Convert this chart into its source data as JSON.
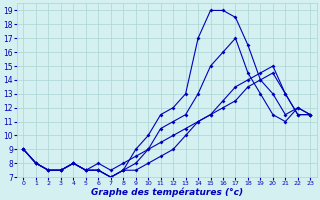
{
  "title": "Graphe des températures (°c)",
  "bg_color": "#d5f0f0",
  "grid_color": "#aad4d4",
  "line_color": "#0000bb",
  "xlim": [
    -0.5,
    23.5
  ],
  "ylim": [
    7,
    19.5
  ],
  "xticks": [
    0,
    1,
    2,
    3,
    4,
    5,
    6,
    7,
    8,
    9,
    10,
    11,
    12,
    13,
    14,
    15,
    16,
    17,
    18,
    19,
    20,
    21,
    22,
    23
  ],
  "yticks": [
    7,
    8,
    9,
    10,
    11,
    12,
    13,
    14,
    15,
    16,
    17,
    18,
    19
  ],
  "line1_x": [
    0,
    1,
    2,
    3,
    4,
    5,
    6,
    7,
    8,
    9,
    10,
    11,
    12,
    13,
    14,
    15,
    16,
    17,
    18,
    19,
    20,
    21,
    22,
    23
  ],
  "line1_y": [
    9,
    8,
    7.5,
    7.5,
    8,
    7.5,
    7.5,
    7,
    7.5,
    9,
    10,
    11.5,
    12,
    13,
    17,
    19,
    19,
    18.5,
    16.5,
    14,
    13,
    11.5,
    12,
    11.5
  ],
  "line2_x": [
    0,
    1,
    2,
    3,
    4,
    5,
    6,
    7,
    8,
    9,
    10,
    11,
    12,
    13,
    14,
    15,
    16,
    17,
    18,
    19,
    20,
    21,
    22,
    23
  ],
  "line2_y": [
    9,
    8,
    7.5,
    7.5,
    8,
    7.5,
    7.5,
    7,
    7.5,
    8,
    9,
    10.5,
    11,
    11.5,
    13,
    15,
    16,
    17,
    14.5,
    13,
    11.5,
    11,
    12,
    11.5
  ],
  "line3_x": [
    0,
    1,
    2,
    3,
    4,
    5,
    6,
    7,
    8,
    9,
    10,
    11,
    12,
    13,
    14,
    15,
    16,
    17,
    18,
    19,
    20,
    21,
    22,
    23
  ],
  "line3_y": [
    9,
    8,
    7.5,
    7.5,
    8,
    7.5,
    8,
    7.5,
    8,
    8.5,
    9,
    9.5,
    10,
    10.5,
    11,
    11.5,
    12,
    12.5,
    13.5,
    14,
    14.5,
    13,
    11.5,
    11.5
  ],
  "line4_x": [
    0,
    1,
    2,
    3,
    4,
    5,
    6,
    7,
    8,
    9,
    10,
    11,
    12,
    13,
    14,
    15,
    16,
    17,
    18,
    19,
    20,
    21,
    22,
    23
  ],
  "line4_y": [
    9,
    8,
    7.5,
    7.5,
    8,
    7.5,
    7.5,
    7,
    7.5,
    7.5,
    8,
    8.5,
    9,
    10,
    11,
    11.5,
    12.5,
    13.5,
    14,
    14.5,
    15,
    13,
    11.5,
    11.5
  ]
}
